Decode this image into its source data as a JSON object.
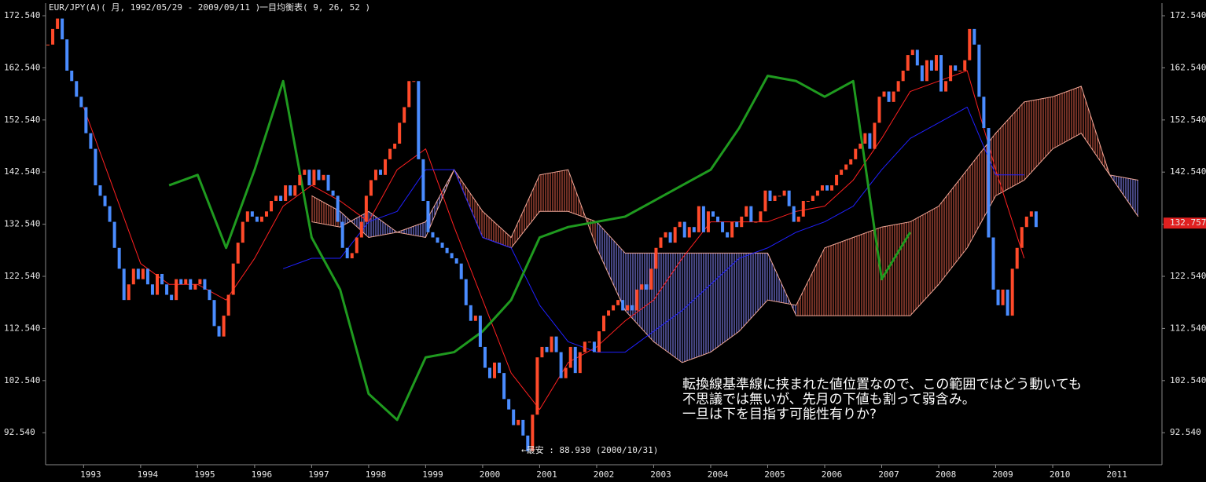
{
  "chart_data": [
    {
      "type": "candlestick",
      "title": "EUR/JPY(A)( 月, 1992/05/29 - 2009/09/11 )",
      "subtitle": "一目均衡表( 9, 26, 52 )",
      "annotation": [
        "転換線基準線に挟まれた値位置なので、この範囲ではどう動いても",
        "不思議では無いが、先月の下値も割って弱含み。",
        "一旦は下を目指す可能性有りか?"
      ],
      "low_note": "←最安 : 88.930 (2000/10/31)",
      "last_price": 132.757,
      "last_price_color": "#e02020",
      "colors": {
        "up": "#ff4a2a",
        "down": "#4a8cff"
      },
      "ylim": [
        86.4,
        174.35
      ],
      "yticks": [
        {
          "value": 92.54,
          "label": "92.540"
        },
        {
          "value": 102.54,
          "label": "102.540"
        },
        {
          "value": 112.54,
          "label": "112.540"
        },
        {
          "value": 122.54,
          "label": "122.540"
        },
        {
          "value": 132.54,
          "label": "132.540"
        },
        {
          "value": 142.54,
          "label": "142.540"
        },
        {
          "value": 152.54,
          "label": "152.540"
        },
        {
          "value": 162.54,
          "label": "162.540"
        },
        {
          "value": 172.54,
          "label": "172.540"
        }
      ],
      "categories": [
        null,
        null,
        null,
        null,
        null,
        null,
        null,
        null,
        "1993",
        null,
        null,
        null,
        null,
        null,
        null,
        null,
        null,
        null,
        null,
        null,
        "1994",
        null,
        null,
        null,
        null,
        null,
        null,
        null,
        null,
        null,
        null,
        null,
        "1995",
        null,
        null,
        null,
        null,
        null,
        null,
        null,
        null,
        null,
        null,
        null,
        "1996",
        null,
        null,
        null,
        null,
        null,
        null,
        null,
        null,
        null,
        null,
        null,
        "1997",
        null,
        null,
        null,
        null,
        null,
        null,
        null,
        null,
        null,
        null,
        null,
        "1998",
        null,
        null,
        null,
        null,
        null,
        null,
        null,
        null,
        null,
        null,
        null,
        "1999",
        null,
        null,
        null,
        null,
        null,
        null,
        null,
        null,
        null,
        null,
        null,
        "2000",
        null,
        null,
        null,
        null,
        null,
        null,
        null,
        null,
        null,
        null,
        null,
        "2001",
        null,
        null,
        null,
        null,
        null,
        null,
        null,
        null,
        null,
        null,
        null,
        "2002",
        null,
        null,
        null,
        null,
        null,
        null,
        null,
        null,
        null,
        null,
        null,
        "2003",
        null,
        null,
        null,
        null,
        null,
        null,
        null,
        null,
        null,
        null,
        null,
        "2004",
        null,
        null,
        null,
        null,
        null,
        null,
        null,
        null,
        null,
        null,
        null,
        "2005",
        null,
        null,
        null,
        null,
        null,
        null,
        null,
        null,
        null,
        null,
        null,
        "2006",
        null,
        null,
        null,
        null,
        null,
        null,
        null,
        null,
        null,
        null,
        null,
        "2007",
        null,
        null,
        null,
        null,
        null,
        null,
        null,
        null,
        null,
        null,
        null,
        "2008",
        null,
        null,
        null,
        null,
        null,
        null,
        null,
        null,
        null,
        null,
        null,
        "2009",
        null,
        null,
        null,
        null,
        null,
        null,
        null,
        null,
        null,
        null,
        null,
        "2010",
        null,
        null,
        null,
        null,
        null,
        null,
        null,
        null,
        null,
        null,
        null,
        "2011",
        null,
        null,
        null,
        null,
        null,
        null,
        null,
        null,
        null,
        null
      ],
      "values": [
        167,
        170,
        172,
        168,
        162,
        160,
        157,
        155,
        150,
        147,
        140,
        138,
        136,
        133,
        128,
        124,
        118,
        121,
        124,
        122,
        124,
        121,
        119,
        123,
        121,
        119,
        118,
        122,
        121,
        122,
        120,
        121,
        122,
        120,
        118,
        113,
        111,
        115,
        119,
        125,
        129,
        133,
        135,
        134,
        133,
        134,
        135,
        137,
        138,
        137,
        140,
        138,
        140,
        142,
        143,
        140,
        143,
        141,
        142,
        139,
        138,
        133,
        128,
        126,
        127,
        130,
        133,
        138,
        141,
        143,
        142,
        145,
        147,
        148,
        152,
        155,
        160,
        160,
        145,
        137,
        131,
        130,
        129,
        128,
        127,
        126,
        125,
        122,
        117,
        114,
        115,
        109,
        105,
        103,
        106,
        104,
        99,
        97,
        94,
        95,
        92,
        89,
        96,
        107,
        109,
        108,
        111,
        108,
        103,
        105,
        109,
        104,
        108,
        110,
        110,
        108,
        112,
        115,
        116,
        117,
        118,
        116,
        117,
        116,
        120,
        121,
        120,
        124,
        128,
        130,
        131,
        129,
        132,
        133,
        130,
        132,
        131,
        136,
        131,
        135,
        134,
        133,
        131,
        130,
        133,
        132,
        134,
        136,
        133,
        133,
        135,
        139,
        137,
        138,
        138,
        139,
        136,
        133,
        134,
        137,
        137,
        138,
        139,
        140,
        139,
        140,
        142,
        143,
        144,
        145,
        147,
        148,
        150,
        147,
        152,
        157,
        158,
        156,
        158,
        160,
        162,
        165,
        166,
        163,
        160,
        164,
        162,
        165,
        158,
        160,
        163,
        162,
        162,
        164,
        170,
        167,
        157,
        151,
        130,
        120,
        117,
        120,
        115,
        124,
        128,
        132,
        134,
        135,
        132,
        null,
        null,
        null,
        null,
        null,
        null,
        null,
        null,
        null,
        null,
        null,
        null,
        null,
        null,
        null,
        null,
        null,
        null,
        null,
        null,
        null,
        null,
        null,
        null,
        null,
        null
      ]
    },
    {
      "type": "ichimoku",
      "xlim": [
        1992.333,
        2011.917
      ],
      "ylim": [
        86.4,
        174.35
      ],
      "x": [
        1992.5,
        1993,
        1993.5,
        1994,
        1994.5,
        1995,
        1995.5,
        1996,
        1996.5,
        1997,
        1997.5,
        1998,
        1998.5,
        1999,
        1999.5,
        2000,
        2000.5,
        2001,
        2001.5,
        2002,
        2002.5,
        2003,
        2003.5,
        2004,
        2004.5,
        2005,
        2005.5,
        2006,
        2006.5,
        2007,
        2007.5,
        2008,
        2008.5,
        2009,
        2009.5,
        2010,
        2010.5,
        2011,
        2011.5
      ],
      "lines": [
        {
          "color": "#ff2020",
          "width": 1,
          "values": [
            null,
            155,
            140,
            125,
            121,
            121,
            118,
            126,
            136,
            140,
            137,
            133,
            143,
            147,
            132,
            118,
            104,
            97,
            106,
            109,
            114,
            118,
            126,
            133,
            133,
            133,
            135,
            136,
            141,
            149,
            158,
            160,
            162,
            143,
            126,
            null,
            null,
            null,
            null
          ]
        },
        {
          "color": "#2020ff",
          "width": 1,
          "values": [
            null,
            null,
            null,
            null,
            null,
            null,
            null,
            null,
            124,
            126,
            126,
            133,
            135,
            143,
            143,
            130,
            128,
            117,
            110,
            108,
            108,
            112,
            116,
            121,
            126,
            128,
            131,
            133,
            136,
            143,
            149,
            152,
            155,
            142,
            142,
            null,
            null,
            null,
            null
          ]
        },
        {
          "color": "#1f9a1f",
          "width": 3,
          "values": [
            null,
            null,
            null,
            null,
            140,
            142,
            128,
            143,
            160,
            130,
            120,
            100,
            95,
            107,
            108,
            112,
            118,
            130,
            132,
            133,
            134,
            137,
            140,
            143,
            151,
            161,
            160,
            157,
            160,
            122,
            131,
            null,
            null,
            null,
            null,
            null,
            null,
            null,
            null
          ]
        }
      ],
      "cloud": {
        "up_color": "#e0604a",
        "down_color": "#8a8aff",
        "edge_color": "#f0a898",
        "span_a": [
          null,
          null,
          null,
          null,
          null,
          null,
          null,
          null,
          null,
          138,
          135,
          130,
          131,
          130,
          143,
          135,
          130,
          142,
          143,
          128,
          116,
          110,
          106,
          108,
          112,
          118,
          117,
          128,
          130,
          132,
          133,
          136,
          143,
          150,
          156,
          157,
          159,
          142,
          134
        ],
        "span_b": [
          null,
          null,
          null,
          null,
          null,
          null,
          null,
          null,
          null,
          133,
          132,
          135,
          131,
          133,
          143,
          130,
          128,
          135,
          135,
          133,
          127,
          127,
          127,
          127,
          127,
          127,
          115,
          115,
          115,
          115,
          115,
          121,
          128,
          138,
          141,
          147,
          150,
          142,
          141
        ]
      }
    }
  ]
}
